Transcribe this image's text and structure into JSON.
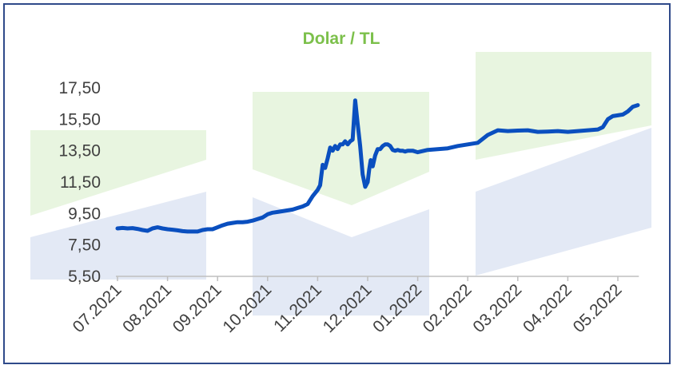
{
  "chart_data": {
    "type": "line",
    "title": "Dolar / TL",
    "xlabel": "",
    "ylabel": "",
    "x_tick_labels": [
      "07.2021",
      "08.2021",
      "09.2021",
      "10.2021",
      "11.2021",
      "12.2021",
      "01.2022",
      "02.2022",
      "03.2022",
      "04.2022",
      "05.2022"
    ],
    "y_tick_labels": [
      "5,50",
      "7,50",
      "9,50",
      "11,50",
      "13,50",
      "15,50",
      "17,50"
    ],
    "y_ticks": [
      5.5,
      7.5,
      9.5,
      11.5,
      13.5,
      15.5,
      17.5
    ],
    "ylim": [
      5.5,
      17.5
    ],
    "xlim": [
      0,
      10.42
    ],
    "grid": false,
    "legend": "none",
    "colors": {
      "line": "#0a4fbf",
      "title": "#7cc04b",
      "frame": "#2f4a8a",
      "axis": "#bfbfbf",
      "watermark_green": "#e8f5e0",
      "watermark_blue": "#e3e9f5"
    },
    "series": [
      {
        "x": [
          0,
          0.1,
          0.2,
          0.3,
          0.4,
          0.5,
          0.6,
          0.7,
          0.8,
          0.9,
          1.0,
          1.1,
          1.2,
          1.3,
          1.4,
          1.5,
          1.6,
          1.7,
          1.8,
          1.9,
          2.0,
          2.1,
          2.2,
          2.3,
          2.4,
          2.5,
          2.6,
          2.7,
          2.8,
          2.9,
          3.0,
          3.1,
          3.2,
          3.3,
          3.4,
          3.5,
          3.6,
          3.7,
          3.8,
          3.9,
          4.0,
          4.05,
          4.1,
          4.15,
          4.2,
          4.25,
          4.3,
          4.35,
          4.4,
          4.45,
          4.5,
          4.55,
          4.6,
          4.65,
          4.7,
          4.75,
          4.8,
          4.85,
          4.9,
          4.95,
          5.0,
          5.03,
          5.06,
          5.1,
          5.15,
          5.2,
          5.25,
          5.3,
          5.35,
          5.4,
          5.45,
          5.5,
          5.55,
          5.6,
          5.65,
          5.7,
          5.75,
          5.8,
          5.85,
          5.9,
          6.0,
          6.2,
          6.4,
          6.6,
          6.8,
          7.0,
          7.2,
          7.4,
          7.6,
          7.8,
          8.0,
          8.2,
          8.4,
          8.6,
          8.8,
          9.0,
          9.2,
          9.4,
          9.6,
          9.7,
          9.8,
          9.9,
          10.0,
          10.1,
          10.2,
          10.3,
          10.4
        ],
        "values": [
          8.55,
          8.58,
          8.55,
          8.57,
          8.52,
          8.45,
          8.4,
          8.55,
          8.62,
          8.55,
          8.5,
          8.47,
          8.43,
          8.38,
          8.35,
          8.35,
          8.35,
          8.45,
          8.5,
          8.5,
          8.62,
          8.75,
          8.85,
          8.9,
          8.95,
          8.95,
          8.98,
          9.05,
          9.15,
          9.25,
          9.45,
          9.55,
          9.6,
          9.65,
          9.7,
          9.75,
          9.85,
          9.95,
          10.1,
          10.6,
          11.0,
          11.3,
          12.6,
          12.4,
          13.0,
          13.7,
          13.5,
          13.8,
          13.6,
          13.9,
          13.9,
          14.1,
          13.9,
          14.1,
          14.2,
          16.7,
          15.2,
          13.8,
          12.0,
          11.2,
          11.5,
          12.3,
          12.9,
          12.5,
          13.2,
          13.6,
          13.6,
          13.8,
          13.9,
          13.9,
          13.8,
          13.55,
          13.5,
          13.55,
          13.5,
          13.5,
          13.45,
          13.5,
          13.5,
          13.5,
          13.4,
          13.55,
          13.6,
          13.65,
          13.8,
          13.9,
          14.0,
          14.5,
          14.8,
          14.75,
          14.78,
          14.8,
          14.7,
          14.72,
          14.75,
          14.7,
          14.75,
          14.8,
          14.85,
          15.0,
          15.5,
          15.7,
          15.75,
          15.8,
          16.0,
          16.3,
          16.4
        ],
        "color": "#0a4fbf"
      }
    ]
  }
}
